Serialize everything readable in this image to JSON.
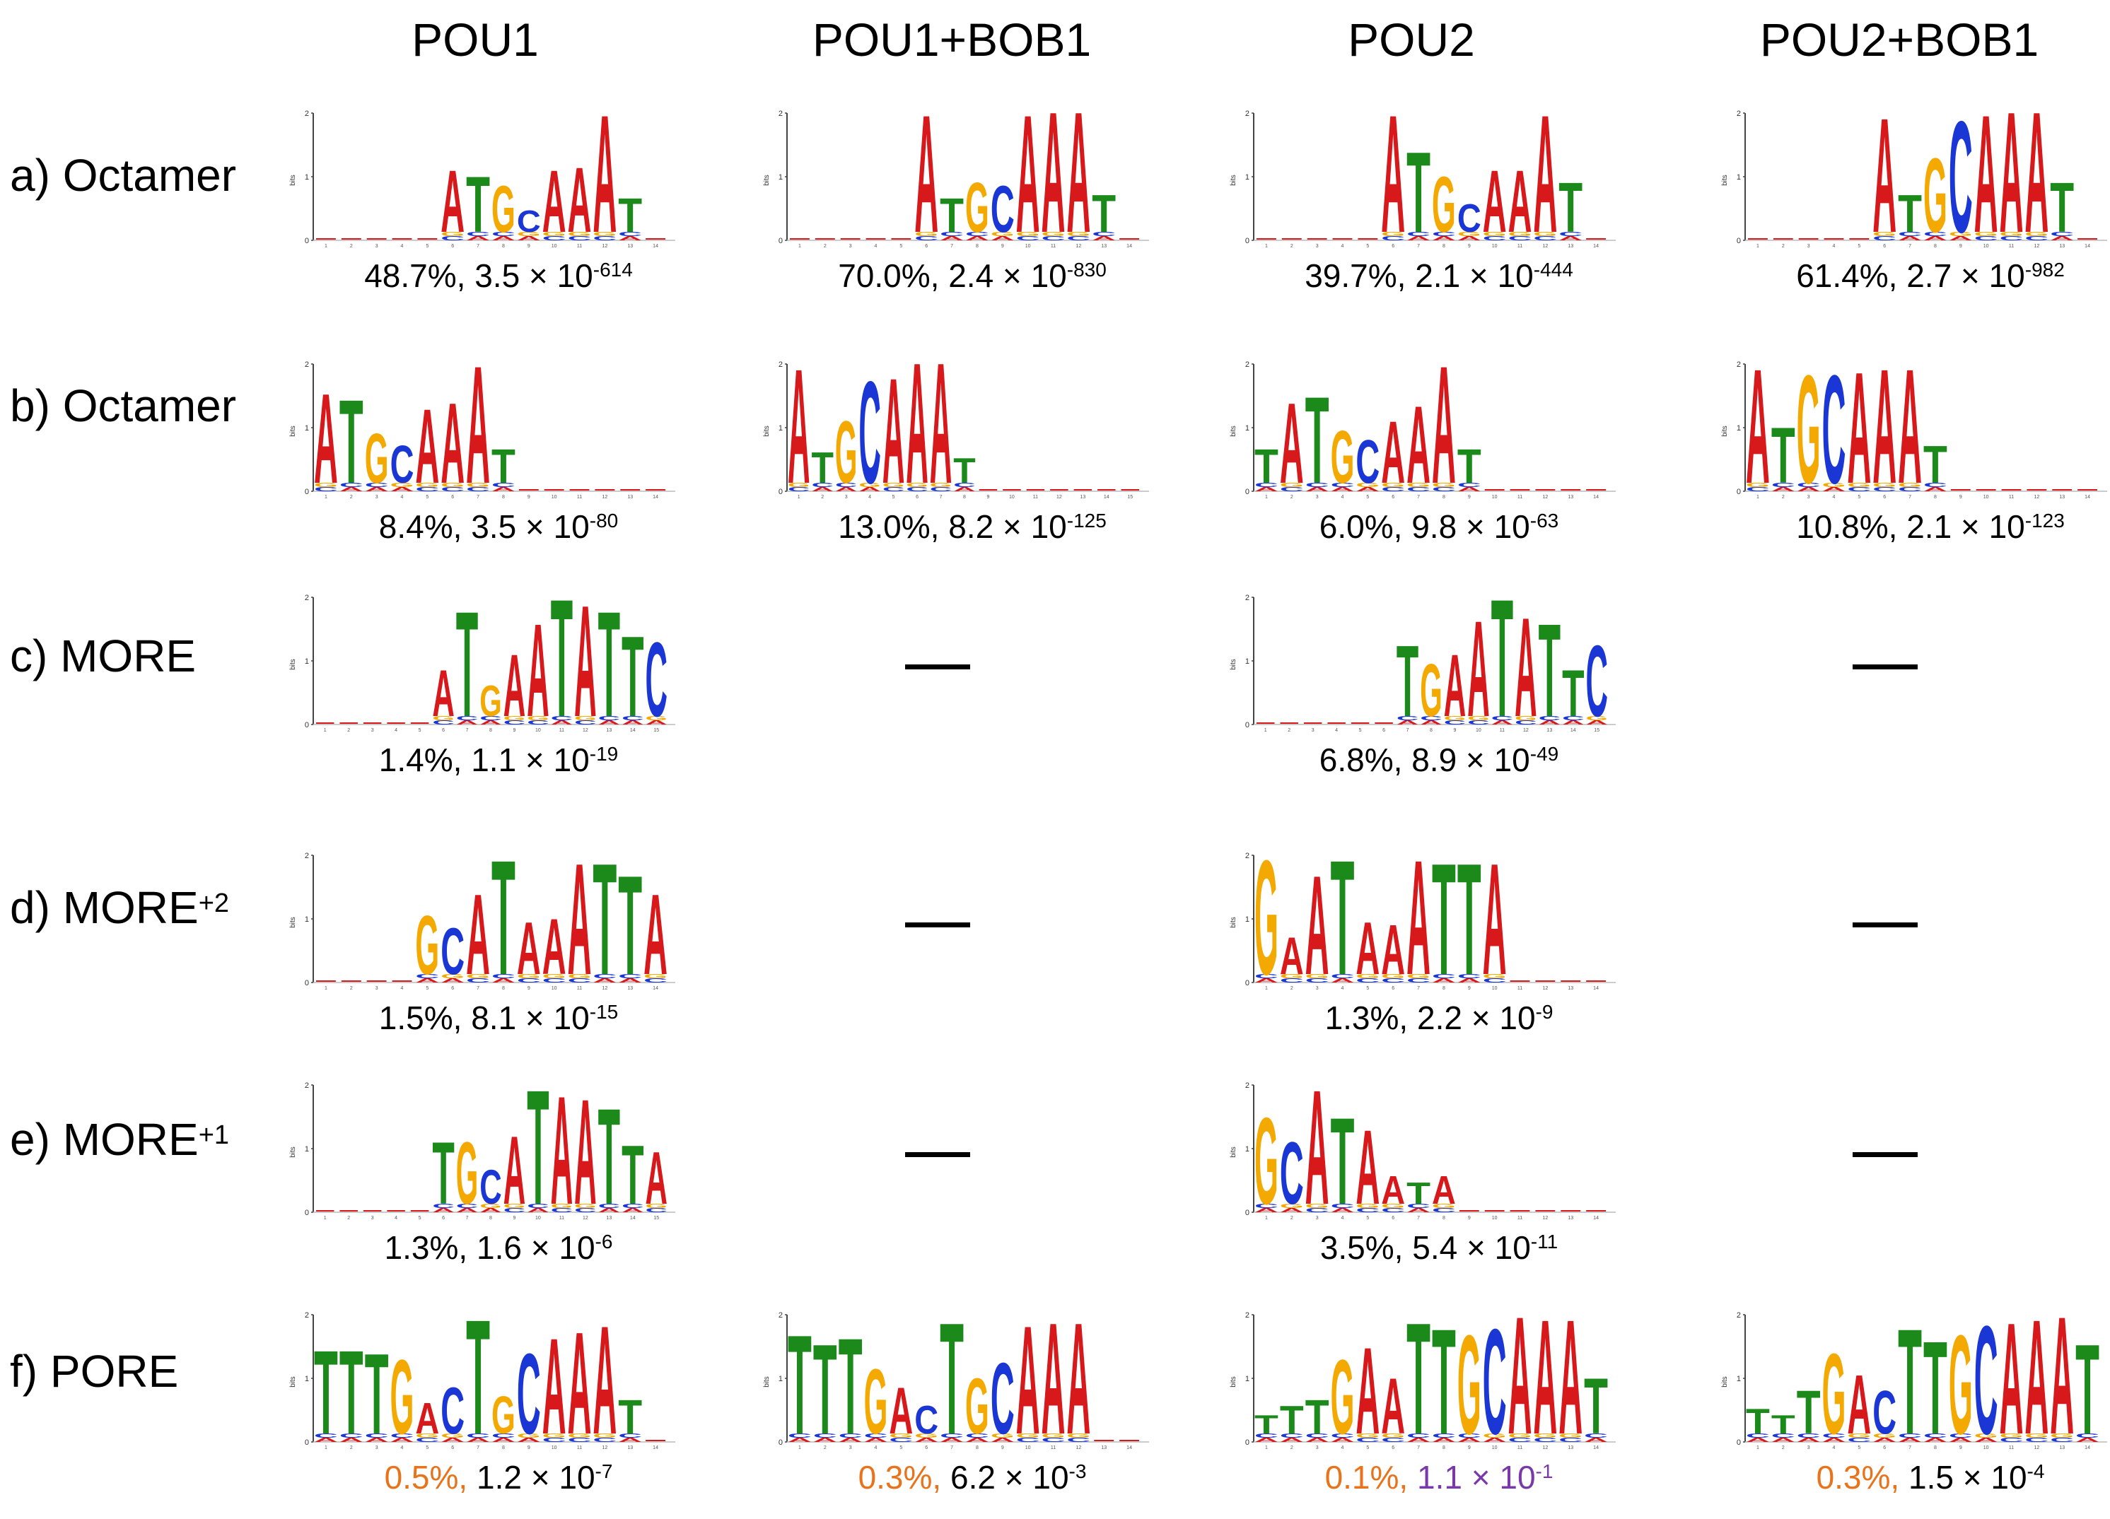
{
  "columns": [
    "POU1",
    "POU1+BOB1",
    "POU2",
    "POU2+BOB1"
  ],
  "rows": [
    {
      "label": "a)  Octamer",
      "sup": ""
    },
    {
      "label": "b)  Octamer",
      "sup": ""
    },
    {
      "label": "c)   MORE",
      "sup": ""
    },
    {
      "label": "d)  MORE",
      "sup": "+2"
    },
    {
      "label": "e)  MORE",
      "sup": "+1"
    },
    {
      "label": "f)   PORE",
      "sup": ""
    }
  ],
  "axis": {
    "ylabel": "bits",
    "yticks": [
      "2",
      "1",
      "0"
    ]
  },
  "colors": {
    "A": "#d7191c",
    "C": "#1a36d4",
    "G": "#f4a900",
    "T": "#1b8a1b",
    "pct_orange": "#e8731a",
    "pval_purple": "#7a39a8",
    "text": "#000000"
  },
  "cells": [
    [
      {
        "pct": "48.7%,",
        "pval": "3.5 × 10",
        "exp": "-614",
        "logo": {
          "n": 14,
          "motif": "ATGCAAAT",
          "start": 6,
          "h": [
            1.0,
            0.9,
            0.75,
            0.35,
            1.0,
            1.05,
            1.9,
            0.55
          ]
        }
      },
      {
        "pct": "70.0%,",
        "pval": "2.4 × 10",
        "exp": "-830",
        "logo": {
          "n": 14,
          "motif": "ATGCAAAT",
          "start": 6,
          "h": [
            1.9,
            0.55,
            0.8,
            0.75,
            1.9,
            1.95,
            1.95,
            0.6
          ]
        }
      },
      {
        "pct": "39.7%,",
        "pval": "2.1 × 10",
        "exp": "-444",
        "logo": {
          "n": 14,
          "motif": "ATGCAAAT",
          "start": 6,
          "h": [
            1.9,
            1.3,
            0.9,
            0.45,
            1.0,
            1.0,
            1.9,
            0.8
          ]
        }
      },
      {
        "pct": "61.4%,",
        "pval": "2.7 × 10",
        "exp": "-982",
        "logo": {
          "n": 14,
          "motif": "ATGCAAAT",
          "start": 6,
          "h": [
            1.85,
            0.6,
            1.2,
            1.8,
            1.9,
            1.95,
            1.95,
            0.8
          ]
        }
      }
    ],
    [
      {
        "pct": "8.4%,",
        "pval": "3.5 × 10",
        "exp": "-80",
        "logo": {
          "n": 14,
          "motif": "ATGCAAAT",
          "start": 1,
          "h": [
            1.45,
            1.35,
            0.8,
            0.6,
            1.2,
            1.3,
            1.9,
            0.55
          ]
        }
      },
      {
        "pct": "13.0%,",
        "pval": "8.2 × 10",
        "exp": "-125",
        "logo": {
          "n": 15,
          "motif": "ATGCAAAT",
          "start": 1,
          "h": [
            1.85,
            0.5,
            1.0,
            1.65,
            1.7,
            1.95,
            1.95,
            0.4
          ]
        }
      },
      {
        "pct": "6.0%,",
        "pval": "9.8 × 10",
        "exp": "-63",
        "logo": {
          "n": 14,
          "motif": "TATGCAAAT",
          "start": 1,
          "h": [
            0.55,
            1.3,
            1.4,
            0.85,
            0.7,
            1.0,
            1.25,
            1.9,
            0.55
          ]
        }
      },
      {
        "pct": "10.8%,",
        "pval": "2.1 × 10",
        "exp": "-123",
        "logo": {
          "n": 14,
          "motif": "ATGCAAAT",
          "start": 1,
          "h": [
            1.85,
            0.9,
            1.75,
            1.75,
            1.8,
            1.85,
            1.85,
            0.6
          ]
        }
      }
    ],
    [
      {
        "pct": "1.4%,",
        "pval": "1.1 × 10",
        "exp": "-19",
        "logo": {
          "n": 15,
          "motif": "ATGAATATTC",
          "start": 6,
          "h": [
            0.75,
            1.7,
            0.5,
            1.0,
            1.5,
            1.9,
            1.8,
            1.7,
            1.3,
            1.2
          ]
        }
      },
      {
        "dash": true
      },
      {
        "pct": "6.8%,",
        "pval": "8.9 × 10",
        "exp": "-49",
        "logo": {
          "n": 15,
          "motif": "TGAATATTC",
          "start": 7,
          "h": [
            1.15,
            0.85,
            1.0,
            1.55,
            1.9,
            1.6,
            1.5,
            0.75,
            1.15
          ]
        }
      },
      {
        "dash": true
      }
    ],
    [
      {
        "pct": "1.5%,",
        "pval": "8.1 × 10",
        "exp": "-15",
        "logo": {
          "n": 14,
          "motif": "GCATAAATTA",
          "start": 5,
          "h": [
            0.95,
            0.75,
            1.3,
            1.85,
            0.85,
            0.9,
            1.8,
            1.8,
            1.6,
            1.3
          ]
        }
      },
      {
        "dash": true
      },
      {
        "pct": "1.3%,",
        "pval": "2.2 × 10",
        "exp": "-9",
        "logo": {
          "n": 14,
          "motif": "GAATAAATTA",
          "start": 1,
          "h": [
            1.85,
            0.6,
            1.6,
            1.85,
            0.85,
            0.8,
            1.85,
            1.8,
            1.8,
            1.8
          ]
        }
      },
      {
        "dash": true
      }
    ],
    [
      {
        "pct": "1.3%,",
        "pval": "1.6 × 10",
        "exp": "-6",
        "logo": {
          "n": 15,
          "motif": "TGCATAATTA",
          "start": 6,
          "h": [
            1.0,
            1.0,
            0.55,
            1.1,
            1.85,
            1.75,
            1.7,
            1.55,
            0.95,
            0.85
          ]
        }
      },
      {
        "dash": true
      },
      {
        "pct": "3.5%,",
        "pval": "5.4 × 10",
        "exp": "-11",
        "logo": {
          "n": 14,
          "motif": "GCATAATA",
          "start": 1,
          "h": [
            1.4,
            1.0,
            1.85,
            1.4,
            1.2,
            0.45,
            0.35,
            0.45
          ]
        }
      },
      {
        "dash": true
      }
    ],
    [
      {
        "pct": "0.5%,",
        "pval": "1.2 × 10",
        "exp": "-7",
        "pct_color": "orange",
        "logo": {
          "n": 14,
          "motif": "TTTGACTGCAAAT",
          "start": 1,
          "h": [
            1.35,
            1.35,
            1.3,
            1.2,
            0.5,
            0.75,
            1.85,
            0.6,
            1.3,
            1.55,
            1.65,
            1.75,
            0.55
          ]
        }
      },
      {
        "pct": "0.3%,",
        "pval": "6.2 × 10",
        "exp": "-3",
        "pct_color": "orange",
        "logo": {
          "n": 14,
          "motif": "TTTGACTGCAAA",
          "start": 1,
          "h": [
            1.6,
            1.45,
            1.55,
            1.05,
            0.75,
            0.45,
            1.8,
            0.9,
            1.15,
            1.75,
            1.8,
            1.8
          ]
        }
      },
      {
        "pct": "0.1%,",
        "pval": "1.1 × 10",
        "exp": "-1",
        "pct_color": "orange",
        "pval_color": "purple",
        "logo": {
          "n": 14,
          "motif": "TTTGAATTGCAAAT",
          "start": 1,
          "h": [
            0.3,
            0.45,
            0.55,
            1.2,
            1.4,
            0.9,
            1.8,
            1.7,
            1.6,
            1.7,
            1.9,
            1.85,
            1.85,
            0.9
          ]
        }
      },
      {
        "pct": "0.3%,",
        "pval": "1.5 × 10",
        "exp": "-4",
        "pct_color": "orange",
        "logo": {
          "n": 14,
          "motif": "TTTGACTTGCAAAT",
          "start": 1,
          "h": [
            0.4,
            0.3,
            0.7,
            1.3,
            0.95,
            0.7,
            1.7,
            1.5,
            1.6,
            1.75,
            1.8,
            1.85,
            1.9,
            1.45
          ]
        }
      }
    ]
  ]
}
